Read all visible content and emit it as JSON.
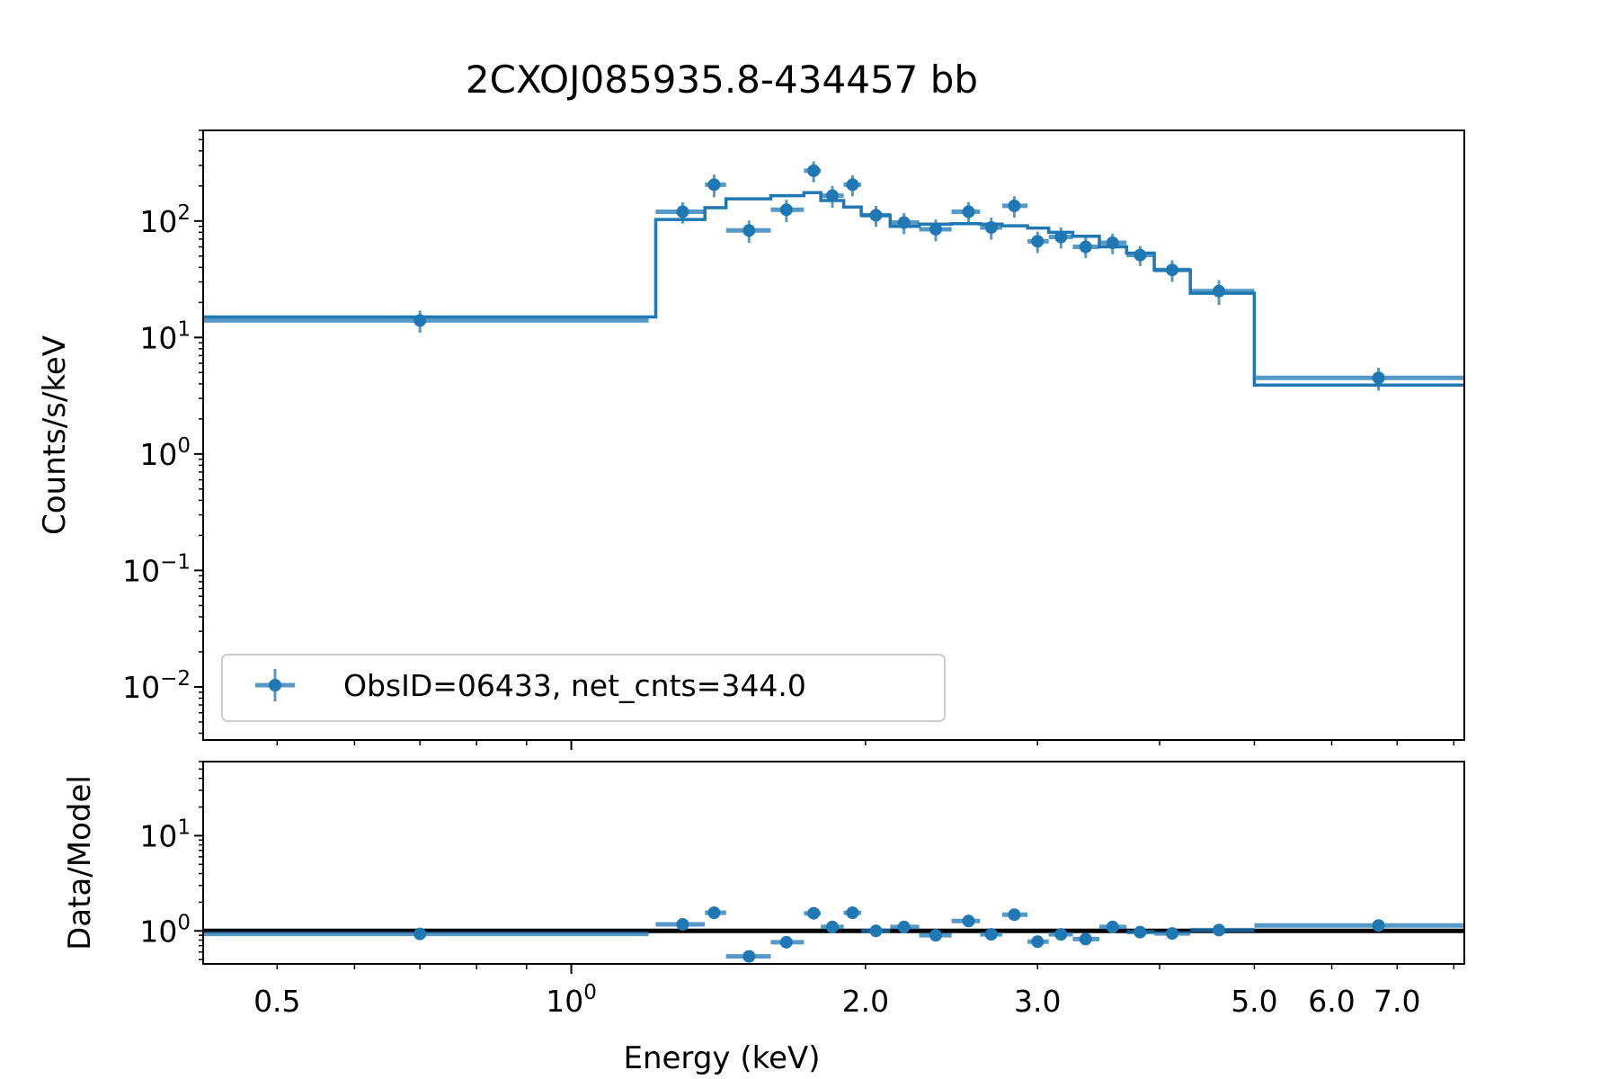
{
  "chart_data": {
    "type": "scatter",
    "title": "2CXOJ085935.8-434457 bb",
    "xlabel": "Energy (keV)",
    "xscale": "log",
    "xlim": [
      0.42,
      8.2
    ],
    "x_ticks": [
      {
        "value": 0.5,
        "label": "0.5"
      },
      {
        "value": 1.0,
        "label": "10",
        "sup": "0"
      },
      {
        "value": 2.0,
        "label": "2.0"
      },
      {
        "value": 3.0,
        "label": "3.0"
      },
      {
        "value": 5.0,
        "label": "5.0"
      },
      {
        "value": 6.0,
        "label": "6.0"
      },
      {
        "value": 7.0,
        "label": "7.0"
      }
    ],
    "color": "#1f77b4",
    "panels": [
      {
        "name": "spectrum",
        "ylabel": "Counts/s/keV",
        "yscale": "log",
        "ylim": [
          0.0035,
          600
        ],
        "y_ticks": [
          {
            "value": 100,
            "label": "10",
            "sup": "2"
          },
          {
            "value": 10,
            "label": "10",
            "sup": "1"
          },
          {
            "value": 1,
            "label": "10",
            "sup": "0"
          },
          {
            "value": 0.1,
            "label": "10",
            "sup": "−1"
          },
          {
            "value": 0.01,
            "label": "10",
            "sup": "−2"
          }
        ],
        "legend": {
          "label": "ObsID=06433, net_cnts=344.0",
          "loc": "lower left"
        },
        "series": [
          {
            "kind": "errorbar",
            "points": [
              {
                "x": 0.7,
                "xlo": 0.42,
                "xhi": 1.2,
                "y": 14,
                "yerr": 3
              },
              {
                "x": 1.3,
                "xlo": 1.22,
                "xhi": 1.37,
                "y": 120,
                "yerr": 25
              },
              {
                "x": 1.4,
                "xlo": 1.37,
                "xhi": 1.44,
                "y": 205,
                "yerr": 45
              },
              {
                "x": 1.52,
                "xlo": 1.44,
                "xhi": 1.6,
                "y": 83,
                "yerr": 18
              },
              {
                "x": 1.66,
                "xlo": 1.6,
                "xhi": 1.73,
                "y": 125,
                "yerr": 27
              },
              {
                "x": 1.77,
                "xlo": 1.73,
                "xhi": 1.8,
                "y": 270,
                "yerr": 55
              },
              {
                "x": 1.85,
                "xlo": 1.8,
                "xhi": 1.9,
                "y": 165,
                "yerr": 35
              },
              {
                "x": 1.94,
                "xlo": 1.9,
                "xhi": 1.98,
                "y": 205,
                "yerr": 42
              },
              {
                "x": 2.05,
                "xlo": 1.98,
                "xhi": 2.12,
                "y": 112,
                "yerr": 23
              },
              {
                "x": 2.19,
                "xlo": 2.12,
                "xhi": 2.27,
                "y": 97,
                "yerr": 20
              },
              {
                "x": 2.36,
                "xlo": 2.27,
                "xhi": 2.45,
                "y": 85,
                "yerr": 18
              },
              {
                "x": 2.55,
                "xlo": 2.45,
                "xhi": 2.62,
                "y": 120,
                "yerr": 25
              },
              {
                "x": 2.69,
                "xlo": 2.62,
                "xhi": 2.76,
                "y": 88,
                "yerr": 19
              },
              {
                "x": 2.84,
                "xlo": 2.76,
                "xhi": 2.93,
                "y": 135,
                "yerr": 28
              },
              {
                "x": 3.0,
                "xlo": 2.93,
                "xhi": 3.08,
                "y": 67,
                "yerr": 14
              },
              {
                "x": 3.17,
                "xlo": 3.08,
                "xhi": 3.26,
                "y": 73,
                "yerr": 15
              },
              {
                "x": 3.36,
                "xlo": 3.26,
                "xhi": 3.47,
                "y": 60,
                "yerr": 12
              },
              {
                "x": 3.58,
                "xlo": 3.47,
                "xhi": 3.7,
                "y": 65,
                "yerr": 13
              },
              {
                "x": 3.82,
                "xlo": 3.7,
                "xhi": 3.95,
                "y": 51,
                "yerr": 10
              },
              {
                "x": 4.12,
                "xlo": 3.95,
                "xhi": 4.3,
                "y": 38,
                "yerr": 8
              },
              {
                "x": 4.6,
                "xlo": 4.3,
                "xhi": 5.0,
                "y": 25,
                "yerr": 6
              },
              {
                "x": 6.7,
                "xlo": 5.0,
                "xhi": 8.2,
                "y": 4.5,
                "yerr": 1.0
              }
            ]
          },
          {
            "kind": "step-model",
            "bins": [
              {
                "xlo": 0.42,
                "xhi": 1.22,
                "y": 15
              },
              {
                "xlo": 1.22,
                "xhi": 1.37,
                "y": 103
              },
              {
                "xlo": 1.37,
                "xhi": 1.44,
                "y": 130
              },
              {
                "xlo": 1.44,
                "xhi": 1.6,
                "y": 155
              },
              {
                "xlo": 1.6,
                "xhi": 1.73,
                "y": 165
              },
              {
                "xlo": 1.73,
                "xhi": 1.8,
                "y": 175
              },
              {
                "xlo": 1.8,
                "xhi": 1.9,
                "y": 150
              },
              {
                "xlo": 1.9,
                "xhi": 1.98,
                "y": 132
              },
              {
                "xlo": 1.98,
                "xhi": 2.12,
                "y": 112
              },
              {
                "xlo": 2.12,
                "xhi": 2.27,
                "y": 90
              },
              {
                "xlo": 2.27,
                "xhi": 2.45,
                "y": 94
              },
              {
                "xlo": 2.45,
                "xhi": 2.62,
                "y": 95
              },
              {
                "xlo": 2.62,
                "xhi": 2.76,
                "y": 94
              },
              {
                "xlo": 2.76,
                "xhi": 2.93,
                "y": 91
              },
              {
                "xlo": 2.93,
                "xhi": 3.08,
                "y": 87
              },
              {
                "xlo": 3.08,
                "xhi": 3.26,
                "y": 80
              },
              {
                "xlo": 3.26,
                "xhi": 3.47,
                "y": 74
              },
              {
                "xlo": 3.47,
                "xhi": 3.7,
                "y": 60
              },
              {
                "xlo": 3.7,
                "xhi": 3.95,
                "y": 53
              },
              {
                "xlo": 3.95,
                "xhi": 4.3,
                "y": 38
              },
              {
                "xlo": 4.3,
                "xhi": 5.0,
                "y": 24
              },
              {
                "xlo": 5.0,
                "xhi": 8.2,
                "y": 3.9
              }
            ]
          }
        ]
      },
      {
        "name": "ratio",
        "ylabel": "Data/Model",
        "yscale": "log",
        "ylim": [
          0.45,
          60
        ],
        "y_ticks": [
          {
            "value": 10,
            "label": "10",
            "sup": "1"
          },
          {
            "value": 1,
            "label": "10",
            "sup": "0"
          }
        ],
        "reference_line": 1.0,
        "series": [
          {
            "kind": "errorbar",
            "points": [
              {
                "x": 0.7,
                "xlo": 0.42,
                "xhi": 1.2,
                "y": 0.93,
                "yerr": 0.07
              },
              {
                "x": 1.3,
                "xlo": 1.22,
                "xhi": 1.37,
                "y": 1.17,
                "yerr": 0.12
              },
              {
                "x": 1.4,
                "xlo": 1.37,
                "xhi": 1.44,
                "y": 1.55,
                "yerr": 0.2
              },
              {
                "x": 1.52,
                "xlo": 1.44,
                "xhi": 1.6,
                "y": 0.54,
                "yerr": 0.06
              },
              {
                "x": 1.66,
                "xlo": 1.6,
                "xhi": 1.73,
                "y": 0.76,
                "yerr": 0.1
              },
              {
                "x": 1.77,
                "xlo": 1.73,
                "xhi": 1.8,
                "y": 1.53,
                "yerr": 0.2
              },
              {
                "x": 1.85,
                "xlo": 1.8,
                "xhi": 1.9,
                "y": 1.1,
                "yerr": 0.15
              },
              {
                "x": 1.94,
                "xlo": 1.9,
                "xhi": 1.98,
                "y": 1.55,
                "yerr": 0.18
              },
              {
                "x": 2.05,
                "xlo": 1.98,
                "xhi": 2.12,
                "y": 1.0,
                "yerr": 0.12
              },
              {
                "x": 2.19,
                "xlo": 2.12,
                "xhi": 2.27,
                "y": 1.1,
                "yerr": 0.12
              },
              {
                "x": 2.36,
                "xlo": 2.27,
                "xhi": 2.45,
                "y": 0.9,
                "yerr": 0.1
              },
              {
                "x": 2.55,
                "xlo": 2.45,
                "xhi": 2.62,
                "y": 1.27,
                "yerr": 0.14
              },
              {
                "x": 2.69,
                "xlo": 2.62,
                "xhi": 2.76,
                "y": 0.92,
                "yerr": 0.1
              },
              {
                "x": 2.84,
                "xlo": 2.76,
                "xhi": 2.93,
                "y": 1.48,
                "yerr": 0.17
              },
              {
                "x": 3.0,
                "xlo": 2.93,
                "xhi": 3.08,
                "y": 0.77,
                "yerr": 0.09
              },
              {
                "x": 3.17,
                "xlo": 3.08,
                "xhi": 3.26,
                "y": 0.92,
                "yerr": 0.1
              },
              {
                "x": 3.36,
                "xlo": 3.26,
                "xhi": 3.47,
                "y": 0.82,
                "yerr": 0.09
              },
              {
                "x": 3.58,
                "xlo": 3.47,
                "xhi": 3.7,
                "y": 1.1,
                "yerr": 0.12
              },
              {
                "x": 3.82,
                "xlo": 3.7,
                "xhi": 3.95,
                "y": 0.97,
                "yerr": 0.11
              },
              {
                "x": 4.12,
                "xlo": 3.95,
                "xhi": 4.3,
                "y": 0.94,
                "yerr": 0.11
              },
              {
                "x": 4.6,
                "xlo": 4.3,
                "xhi": 5.0,
                "y": 1.02,
                "yerr": 0.12
              },
              {
                "x": 6.7,
                "xlo": 5.0,
                "xhi": 8.2,
                "y": 1.14,
                "yerr": 0.14
              }
            ]
          }
        ]
      }
    ]
  }
}
